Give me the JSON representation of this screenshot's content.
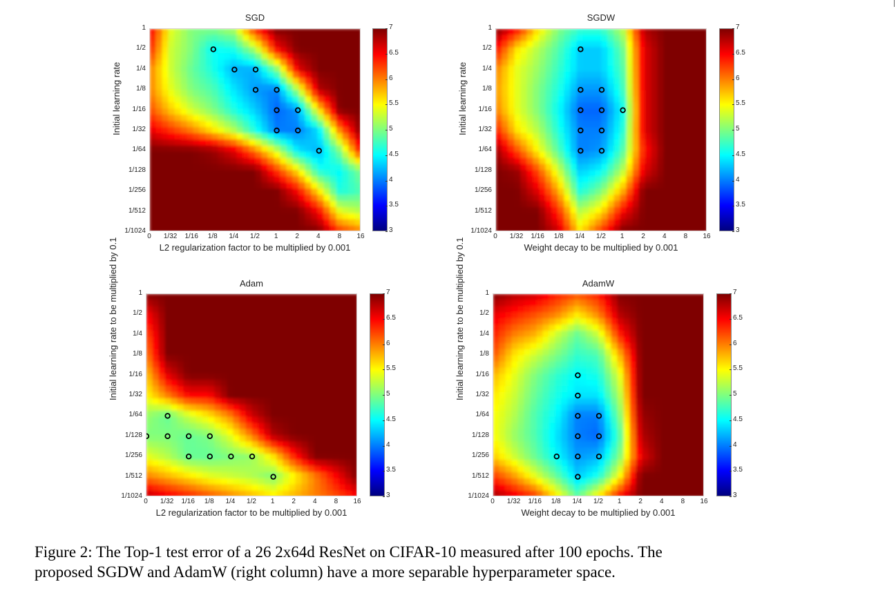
{
  "figure": {
    "caption_line1": "Figure 2:  The Top-1 test error of a 26 2x64d ResNet on CIFAR-10 measured after 100 epochs. The",
    "caption_line2": "proposed SGDW and AdamW (right column) have a more separable hyperparameter space."
  },
  "colormap": {
    "name": "jet",
    "stops": [
      "#00007f",
      "#0000ff",
      "#007fff",
      "#00ffff",
      "#7fff7f",
      "#ffff00",
      "#ff7f00",
      "#ff0000",
      "#7f0000"
    ]
  },
  "chart_data": [
    {
      "type": "heatmap",
      "title": "SGD",
      "xlabel": "L2 regularization factor to be multiplied by 0.001",
      "ylabel": "Initial learning rate",
      "x_ticks": [
        "0",
        "1/32",
        "1/16",
        "1/8",
        "1/4",
        "1/2",
        "1",
        "2",
        "4",
        "8",
        "16"
      ],
      "y_ticks": [
        "1",
        "1/2",
        "1/4",
        "1/8",
        "1/16",
        "1/32",
        "1/64",
        "1/128",
        "1/256",
        "1/512",
        "1/1024"
      ],
      "colorbar_ticks": [
        "7",
        "6.5",
        "6",
        "5.5",
        "5",
        "4.5",
        "4",
        "3.5",
        "3"
      ],
      "clim": [
        3,
        7
      ],
      "z": [
        [
          6.6,
          5.4,
          5.0,
          5.0,
          5.2,
          6.4,
          7.0,
          7.0,
          7.0,
          7.0,
          7.0
        ],
        [
          6.4,
          5.3,
          5.0,
          4.5,
          4.6,
          5.2,
          6.5,
          7.0,
          7.0,
          7.0,
          7.0
        ],
        [
          6.0,
          5.3,
          4.9,
          4.6,
          4.2,
          4.2,
          5.0,
          6.6,
          7.0,
          7.0,
          7.0
        ],
        [
          6.0,
          5.4,
          5.0,
          4.8,
          4.4,
          4.1,
          4.0,
          5.2,
          6.8,
          7.0,
          7.0
        ],
        [
          6.2,
          5.7,
          5.3,
          5.0,
          4.6,
          4.3,
          3.9,
          4.1,
          5.6,
          7.0,
          7.0
        ],
        [
          6.6,
          6.3,
          6.0,
          5.6,
          5.2,
          4.6,
          4.0,
          4.0,
          4.4,
          6.0,
          7.0
        ],
        [
          7.0,
          7.0,
          7.0,
          6.9,
          6.6,
          6.0,
          5.3,
          4.4,
          4.2,
          5.0,
          6.5
        ],
        [
          7.0,
          7.0,
          7.0,
          7.0,
          7.0,
          7.0,
          6.3,
          5.6,
          4.6,
          4.5,
          5.0
        ],
        [
          7.0,
          7.0,
          7.0,
          7.0,
          7.0,
          7.0,
          7.0,
          6.5,
          5.6,
          4.6,
          4.8
        ],
        [
          7.0,
          7.0,
          7.0,
          7.0,
          7.0,
          7.0,
          7.0,
          7.0,
          6.5,
          5.4,
          5.2
        ],
        [
          7.0,
          7.0,
          7.0,
          7.0,
          7.0,
          7.0,
          7.0,
          7.0,
          7.0,
          6.3,
          6.0
        ]
      ],
      "best_points": [
        [
          "1/8",
          "1/2"
        ],
        [
          "1/4",
          "1/4"
        ],
        [
          "1/2",
          "1/4"
        ],
        [
          "1/2",
          "1/8"
        ],
        [
          "1",
          "1/8"
        ],
        [
          "1",
          "1/16"
        ],
        [
          "2",
          "1/16"
        ],
        [
          "1",
          "1/32"
        ],
        [
          "2",
          "1/32"
        ],
        [
          "4",
          "1/64"
        ]
      ]
    },
    {
      "type": "heatmap",
      "title": "SGDW",
      "xlabel": "Weight decay to be multiplied by 0.001",
      "ylabel": "Initial learning rate",
      "x_ticks": [
        "0",
        "1/32",
        "1/16",
        "1/8",
        "1/4",
        "1/2",
        "1",
        "2",
        "4",
        "8",
        "16"
      ],
      "y_ticks": [
        "1",
        "1/2",
        "1/4",
        "1/8",
        "1/16",
        "1/32",
        "1/64",
        "1/128",
        "1/256",
        "1/512",
        "1/1024"
      ],
      "colorbar_ticks": [
        "7",
        "6.5",
        "6",
        "5.5",
        "5",
        "4.5",
        "4",
        "3.5",
        "3"
      ],
      "clim": [
        3,
        7
      ],
      "z": [
        [
          7.0,
          6.5,
          5.6,
          5.0,
          4.7,
          4.7,
          5.2,
          6.8,
          7.0,
          7.0,
          7.0
        ],
        [
          6.5,
          5.6,
          5.2,
          4.8,
          4.3,
          4.3,
          4.9,
          6.6,
          7.0,
          7.0,
          7.0
        ],
        [
          6.0,
          5.4,
          5.1,
          4.7,
          4.3,
          4.3,
          4.8,
          6.6,
          7.0,
          7.0,
          7.0
        ],
        [
          5.9,
          5.4,
          5.0,
          4.6,
          4.1,
          4.1,
          4.7,
          6.6,
          7.0,
          7.0,
          7.0
        ],
        [
          6.0,
          5.4,
          5.0,
          4.5,
          3.9,
          3.9,
          4.5,
          6.6,
          7.0,
          7.0,
          7.0
        ],
        [
          6.4,
          5.6,
          5.2,
          4.6,
          4.0,
          4.0,
          4.6,
          6.6,
          7.0,
          7.0,
          7.0
        ],
        [
          6.9,
          6.2,
          5.5,
          4.8,
          4.0,
          4.1,
          4.8,
          6.4,
          7.0,
          7.0,
          7.0
        ],
        [
          7.0,
          6.9,
          6.2,
          5.3,
          4.3,
          4.5,
          5.2,
          6.6,
          7.0,
          7.0,
          7.0
        ],
        [
          7.0,
          7.0,
          6.6,
          5.8,
          4.6,
          5.0,
          5.8,
          7.0,
          7.0,
          7.0,
          7.0
        ],
        [
          7.0,
          7.0,
          7.0,
          6.3,
          5.2,
          5.6,
          6.5,
          7.0,
          7.0,
          7.0,
          7.0
        ],
        [
          7.0,
          7.0,
          7.0,
          6.7,
          5.6,
          6.3,
          7.0,
          7.0,
          7.0,
          7.0,
          7.0
        ]
      ],
      "best_points": [
        [
          "1/4",
          "1/2"
        ],
        [
          "1/4",
          "1/8"
        ],
        [
          "1/2",
          "1/8"
        ],
        [
          "1/4",
          "1/16"
        ],
        [
          "1/2",
          "1/16"
        ],
        [
          "1",
          "1/16"
        ],
        [
          "1/4",
          "1/32"
        ],
        [
          "1/2",
          "1/32"
        ],
        [
          "1/4",
          "1/64"
        ],
        [
          "1/2",
          "1/64"
        ]
      ]
    },
    {
      "type": "heatmap",
      "title": "Adam",
      "xlabel": "L2 regularization factor to be multiplied by 0.001",
      "ylabel": "Initial learning rate to be multiplied by 0.1",
      "x_ticks": [
        "0",
        "1/32",
        "1/16",
        "1/8",
        "1/4",
        "1/2",
        "1",
        "2",
        "4",
        "8",
        "16"
      ],
      "y_ticks": [
        "1",
        "1/2",
        "1/4",
        "1/8",
        "1/16",
        "1/32",
        "1/64",
        "1/128",
        "1/256",
        "1/512",
        "1/1024"
      ],
      "colorbar_ticks": [
        "7",
        "6.5",
        "6",
        "5.5",
        "5",
        "4.5",
        "4",
        "3.5",
        "3"
      ],
      "clim": [
        3,
        7
      ],
      "z": [
        [
          7.0,
          7.0,
          7.0,
          7.0,
          7.0,
          7.0,
          7.0,
          7.0,
          7.0,
          7.0,
          7.0
        ],
        [
          6.5,
          7.0,
          7.0,
          7.0,
          7.0,
          7.0,
          7.0,
          7.0,
          7.0,
          7.0,
          7.0
        ],
        [
          6.2,
          7.0,
          7.0,
          7.0,
          7.0,
          7.0,
          7.0,
          7.0,
          7.0,
          7.0,
          7.0
        ],
        [
          6.0,
          7.0,
          7.0,
          7.0,
          7.0,
          7.0,
          7.0,
          7.0,
          7.0,
          7.0,
          7.0
        ],
        [
          5.7,
          6.6,
          7.0,
          7.0,
          7.0,
          7.0,
          7.0,
          7.0,
          7.0,
          7.0,
          7.0
        ],
        [
          5.5,
          6.0,
          6.5,
          6.5,
          7.0,
          7.0,
          7.0,
          7.0,
          7.0,
          7.0,
          7.0
        ],
        [
          5.1,
          4.9,
          5.3,
          5.6,
          6.0,
          6.7,
          7.0,
          7.0,
          7.0,
          7.0,
          7.0
        ],
        [
          5.0,
          5.0,
          4.9,
          5.0,
          5.4,
          6.0,
          6.8,
          7.0,
          7.0,
          7.0,
          7.0
        ],
        [
          5.4,
          5.2,
          4.9,
          4.9,
          5.0,
          5.1,
          5.6,
          6.4,
          7.0,
          7.0,
          7.0
        ],
        [
          6.0,
          5.8,
          5.6,
          5.4,
          5.3,
          5.2,
          5.0,
          5.5,
          6.0,
          6.5,
          7.0
        ],
        [
          6.8,
          6.6,
          6.4,
          6.2,
          6.0,
          5.8,
          5.6,
          5.8,
          6.0,
          6.2,
          6.5
        ]
      ],
      "best_points": [
        [
          "1/32",
          "1/64"
        ],
        [
          "0",
          "1/128"
        ],
        [
          "1/32",
          "1/128"
        ],
        [
          "1/16",
          "1/128"
        ],
        [
          "1/8",
          "1/128"
        ],
        [
          "1/16",
          "1/256"
        ],
        [
          "1/8",
          "1/256"
        ],
        [
          "1/4",
          "1/256"
        ],
        [
          "1/2",
          "1/256"
        ],
        [
          "1",
          "1/512"
        ]
      ]
    },
    {
      "type": "heatmap",
      "title": "AdamW",
      "xlabel": "Weight decay to be multiplied by 0.001",
      "ylabel": "Initial learning rate to be multiplied by 0.1",
      "x_ticks": [
        "0",
        "1/32",
        "1/16",
        "1/8",
        "1/4",
        "1/2",
        "1",
        "2",
        "4",
        "8",
        "16"
      ],
      "y_ticks": [
        "1",
        "1/2",
        "1/4",
        "1/8",
        "1/16",
        "1/32",
        "1/64",
        "1/128",
        "1/256",
        "1/512",
        "1/1024"
      ],
      "colorbar_ticks": [
        "7",
        "6.5",
        "6",
        "5.5",
        "5",
        "4.5",
        "4",
        "3.5",
        "3"
      ],
      "clim": [
        3,
        7
      ],
      "z": [
        [
          7.0,
          6.8,
          6.7,
          6.4,
          6.2,
          6.4,
          7.0,
          7.0,
          7.0,
          7.0,
          7.0
        ],
        [
          6.6,
          6.4,
          6.2,
          6.0,
          5.6,
          6.0,
          6.8,
          7.0,
          7.0,
          7.0,
          7.0
        ],
        [
          6.4,
          6.0,
          5.8,
          5.3,
          4.9,
          5.3,
          6.4,
          7.0,
          7.0,
          7.0,
          7.0
        ],
        [
          6.2,
          5.6,
          5.3,
          5.0,
          4.7,
          4.8,
          5.8,
          7.0,
          7.0,
          7.0,
          7.0
        ],
        [
          5.8,
          5.4,
          5.0,
          4.7,
          4.5,
          4.6,
          5.4,
          7.0,
          7.0,
          7.0,
          7.0
        ],
        [
          5.6,
          5.3,
          4.9,
          4.6,
          4.4,
          4.4,
          5.2,
          7.0,
          7.0,
          7.0,
          7.0
        ],
        [
          5.5,
          5.2,
          4.8,
          4.5,
          4.0,
          4.0,
          5.0,
          6.9,
          7.0,
          7.0,
          7.0
        ],
        [
          5.5,
          5.1,
          4.8,
          4.4,
          4.0,
          3.9,
          4.8,
          6.8,
          7.0,
          7.0,
          7.0
        ],
        [
          5.7,
          5.3,
          4.9,
          4.5,
          4.1,
          4.2,
          5.0,
          6.6,
          7.0,
          7.0,
          7.0
        ],
        [
          6.3,
          5.9,
          5.4,
          4.9,
          4.3,
          4.6,
          5.5,
          7.0,
          7.0,
          7.0,
          7.0
        ],
        [
          6.9,
          6.6,
          6.3,
          5.6,
          4.9,
          5.6,
          6.5,
          7.0,
          7.0,
          7.0,
          7.0
        ]
      ],
      "best_points": [
        [
          "1/4",
          "1/16"
        ],
        [
          "1/4",
          "1/32"
        ],
        [
          "1/4",
          "1/64"
        ],
        [
          "1/2",
          "1/64"
        ],
        [
          "1/4",
          "1/128"
        ],
        [
          "1/2",
          "1/128"
        ],
        [
          "1/8",
          "1/256"
        ],
        [
          "1/4",
          "1/256"
        ],
        [
          "1/2",
          "1/256"
        ],
        [
          "1/4",
          "1/512"
        ]
      ]
    }
  ]
}
